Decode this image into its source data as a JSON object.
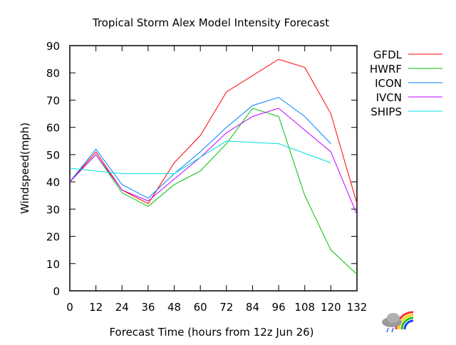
{
  "chart_data": {
    "type": "line",
    "title": "Tropical Storm Alex Model Intensity Forecast",
    "xlabel": "Forecast Time (hours from 12z  Jun 26)",
    "ylabel": "Windspeed(mph)",
    "xlim": [
      0,
      132
    ],
    "ylim": [
      0,
      90
    ],
    "xticks": [
      0,
      12,
      24,
      36,
      48,
      60,
      72,
      84,
      96,
      108,
      120,
      132
    ],
    "yticks": [
      0,
      10,
      20,
      30,
      40,
      50,
      60,
      70,
      80,
      90
    ],
    "grid": false,
    "legend_position": "right",
    "series": [
      {
        "name": "GFDL",
        "color": "#ff0000",
        "x": [
          0,
          12,
          24,
          36,
          48,
          60,
          72,
          84,
          96,
          108,
          120,
          132
        ],
        "values": [
          40,
          51,
          37,
          32,
          47,
          57,
          73,
          79,
          85,
          82,
          65,
          32
        ]
      },
      {
        "name": "HWRF",
        "color": "#00c000",
        "x": [
          0,
          12,
          24,
          36,
          48,
          60,
          72,
          84,
          96,
          108,
          120,
          132
        ],
        "values": [
          40,
          50,
          36,
          31,
          39,
          44,
          54,
          67,
          64,
          35,
          15,
          6
        ]
      },
      {
        "name": "ICON",
        "color": "#0080ff",
        "x": [
          0,
          12,
          24,
          36,
          48,
          60,
          72,
          84,
          96,
          108,
          120
        ],
        "values": [
          40,
          52,
          39,
          34,
          43,
          51,
          60,
          68,
          71,
          64,
          54
        ]
      },
      {
        "name": "IVCN",
        "color": "#c000ff",
        "x": [
          0,
          12,
          24,
          36,
          48,
          60,
          72,
          84,
          96,
          108,
          120,
          132
        ],
        "values": [
          40,
          50,
          37,
          33,
          41,
          49,
          58,
          64,
          67,
          59,
          51,
          28
        ]
      },
      {
        "name": "SHIPS",
        "color": "#00e0e0",
        "x": [
          0,
          12,
          24,
          36,
          48,
          60,
          72,
          84,
          96,
          108,
          120
        ],
        "values": [
          45,
          44,
          43,
          43,
          43,
          49,
          55,
          54.5,
          54,
          50.5,
          47
        ]
      }
    ]
  }
}
